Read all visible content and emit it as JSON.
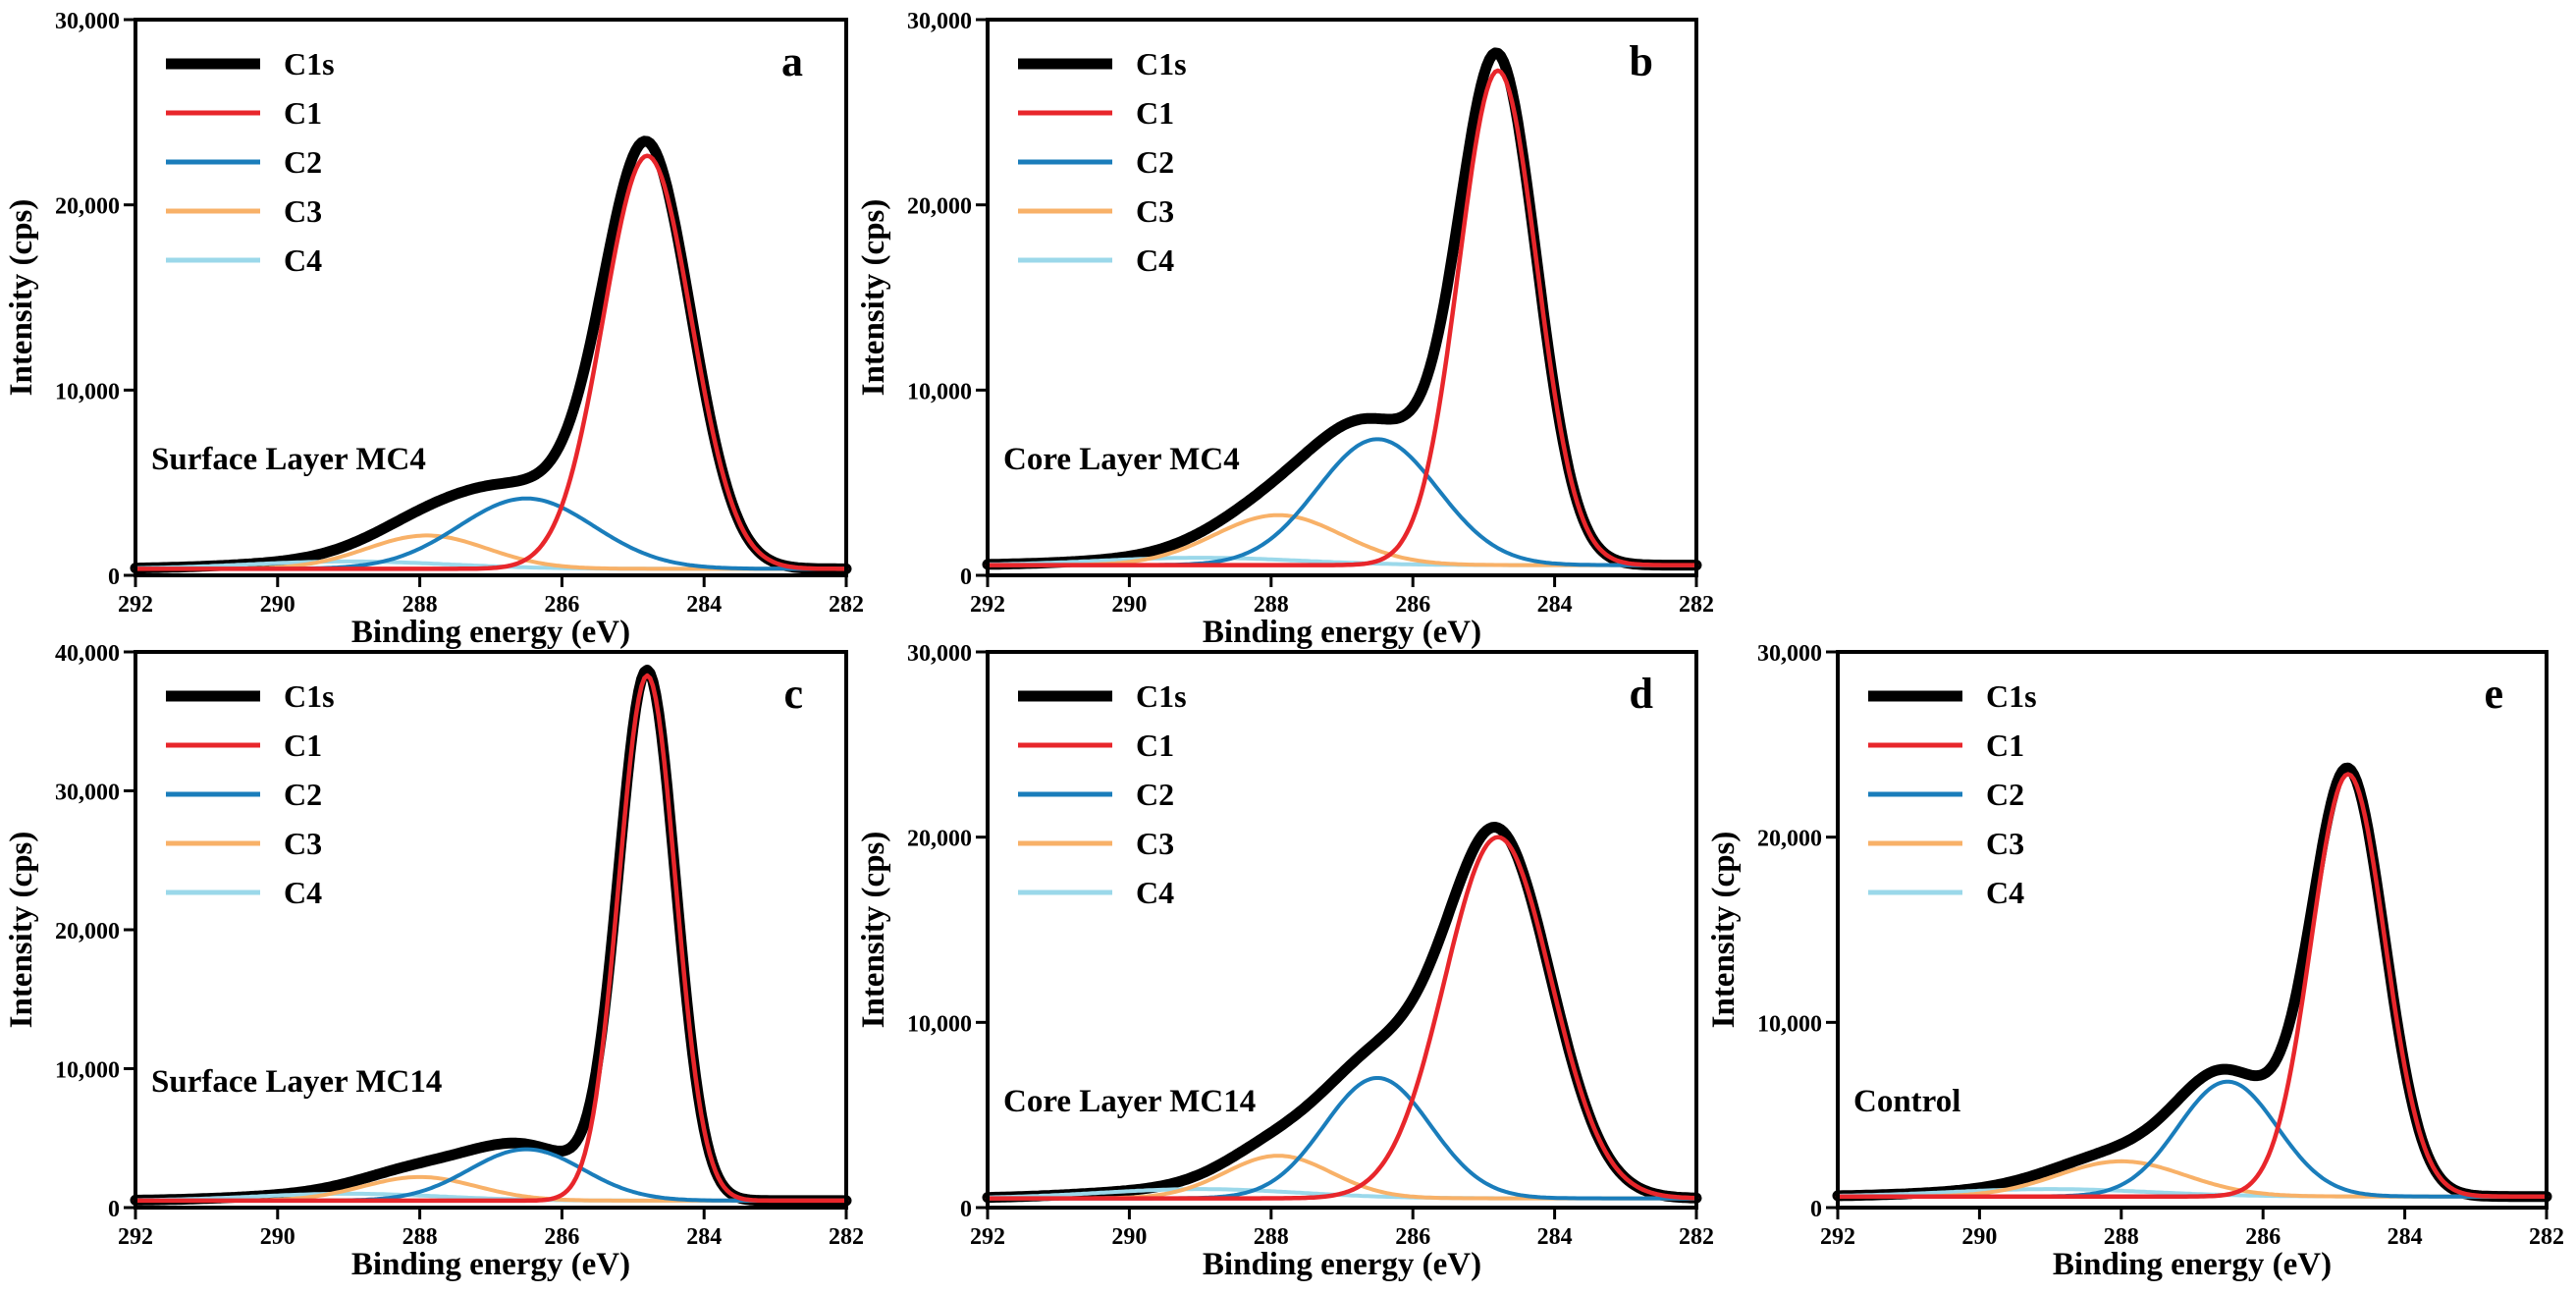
{
  "figure": {
    "series_colors": {
      "C1s": "#000000",
      "C1": "#e8262b",
      "C2": "#1a7dbb",
      "C3": "#f8b168",
      "C4": "#9bd8ea"
    }
  },
  "chart_data": [
    {
      "type": "line",
      "panel": "a",
      "sample": "Surface Layer MC4",
      "xlabel": "Binding energy (eV)",
      "ylabel": "Intensity (cps)",
      "xlim": [
        292,
        282
      ],
      "ylim": [
        0,
        30000
      ],
      "x_ticks": [
        "292",
        "290",
        "288",
        "286",
        "284",
        "282"
      ],
      "x_tick_values": [
        292,
        290,
        288,
        286,
        284,
        282
      ],
      "y_ticks": [
        "0",
        "10,000",
        "20,000",
        "30,000"
      ],
      "y_tick_values": [
        0,
        10000,
        20000,
        30000
      ],
      "baseline": 350,
      "legend": [
        "C1s",
        "C1",
        "C2",
        "C3",
        "C4"
      ],
      "series": [
        {
          "name": "C1",
          "center": 284.8,
          "amplitude": 22300,
          "width": 0.62
        },
        {
          "name": "C2",
          "center": 286.5,
          "amplitude": 3800,
          "width": 0.95
        },
        {
          "name": "C3",
          "center": 287.9,
          "amplitude": 1800,
          "width": 0.85
        },
        {
          "name": "C4",
          "center": 289.0,
          "amplitude": 400,
          "width": 1.4
        }
      ]
    },
    {
      "type": "line",
      "panel": "b",
      "sample": "Core Layer MC4",
      "xlabel": "Binding energy (eV)",
      "ylabel": "Intensity (cps)",
      "xlim": [
        292,
        282
      ],
      "ylim": [
        0,
        30000
      ],
      "x_ticks": [
        "292",
        "290",
        "288",
        "286",
        "284",
        "282"
      ],
      "x_tick_values": [
        292,
        290,
        288,
        286,
        284,
        282
      ],
      "y_ticks": [
        "0",
        "10,000",
        "20,000",
        "30,000"
      ],
      "y_tick_values": [
        0,
        10000,
        20000,
        30000
      ],
      "baseline": 550,
      "legend": [
        "C1s",
        "C1",
        "C2",
        "C3",
        "C4"
      ],
      "series": [
        {
          "name": "C1",
          "center": 284.8,
          "amplitude": 26700,
          "width": 0.55
        },
        {
          "name": "C2",
          "center": 286.5,
          "amplitude": 6800,
          "width": 0.85
        },
        {
          "name": "C3",
          "center": 287.9,
          "amplitude": 2700,
          "width": 0.9
        },
        {
          "name": "C4",
          "center": 289.0,
          "amplitude": 400,
          "width": 1.4
        }
      ]
    },
    {
      "type": "line",
      "panel": "c",
      "sample": "Surface Layer MC14",
      "xlabel": "Binding energy (eV)",
      "ylabel": "Intensity (cps)",
      "xlim": [
        292,
        282
      ],
      "ylim": [
        0,
        40000
      ],
      "x_ticks": [
        "292",
        "290",
        "288",
        "286",
        "284",
        "282"
      ],
      "x_tick_values": [
        292,
        290,
        288,
        286,
        284,
        282
      ],
      "y_ticks": [
        "0",
        "10,000",
        "20,000",
        "30,000",
        "40,000"
      ],
      "y_tick_values": [
        0,
        10000,
        20000,
        30000,
        40000
      ],
      "baseline": 500,
      "legend": [
        "C1s",
        "C1",
        "C2",
        "C3",
        "C4"
      ],
      "series": [
        {
          "name": "C1",
          "center": 284.8,
          "amplitude": 37800,
          "width": 0.4
        },
        {
          "name": "C2",
          "center": 286.5,
          "amplitude": 3700,
          "width": 0.8
        },
        {
          "name": "C3",
          "center": 288.0,
          "amplitude": 1700,
          "width": 0.8
        },
        {
          "name": "C4",
          "center": 289.0,
          "amplitude": 500,
          "width": 1.3
        }
      ]
    },
    {
      "type": "line",
      "panel": "d",
      "sample": "Core Layer MC14",
      "xlabel": "Binding energy (eV)",
      "ylabel": "Intensity (cps)",
      "xlim": [
        292,
        282
      ],
      "ylim": [
        0,
        30000
      ],
      "x_ticks": [
        "292",
        "290",
        "288",
        "286",
        "284",
        "282"
      ],
      "x_tick_values": [
        292,
        290,
        288,
        286,
        284,
        282
      ],
      "y_ticks": [
        "0",
        "10,000",
        "20,000",
        "30,000"
      ],
      "y_tick_values": [
        0,
        10000,
        20000,
        30000
      ],
      "baseline": 500,
      "legend": [
        "C1s",
        "C1",
        "C2",
        "C3",
        "C4"
      ],
      "series": [
        {
          "name": "C1",
          "center": 284.8,
          "amplitude": 19500,
          "width": 0.75
        },
        {
          "name": "C2",
          "center": 286.5,
          "amplitude": 6500,
          "width": 0.75
        },
        {
          "name": "C3",
          "center": 287.9,
          "amplitude": 2300,
          "width": 0.75
        },
        {
          "name": "C4",
          "center": 289.0,
          "amplitude": 500,
          "width": 1.4
        }
      ]
    },
    {
      "type": "line",
      "panel": "e",
      "sample": "Control",
      "xlabel": "Binding energy (eV)",
      "ylabel": "Intensity (cps)",
      "xlim": [
        292,
        282
      ],
      "ylim": [
        0,
        30000
      ],
      "x_ticks": [
        "292",
        "290",
        "288",
        "286",
        "284",
        "282"
      ],
      "x_tick_values": [
        292,
        290,
        288,
        286,
        284,
        282
      ],
      "y_ticks": [
        "0",
        "10,000",
        "20,000",
        "30,000"
      ],
      "y_tick_values": [
        0,
        10000,
        20000,
        30000
      ],
      "baseline": 600,
      "legend": [
        "C1s",
        "C1",
        "C2",
        "C3",
        "C4"
      ],
      "series": [
        {
          "name": "C1",
          "center": 284.8,
          "amplitude": 22800,
          "width": 0.52
        },
        {
          "name": "C2",
          "center": 286.5,
          "amplitude": 6200,
          "width": 0.7
        },
        {
          "name": "C3",
          "center": 288.0,
          "amplitude": 1900,
          "width": 0.9
        },
        {
          "name": "C4",
          "center": 289.0,
          "amplitude": 400,
          "width": 1.4
        }
      ]
    }
  ]
}
